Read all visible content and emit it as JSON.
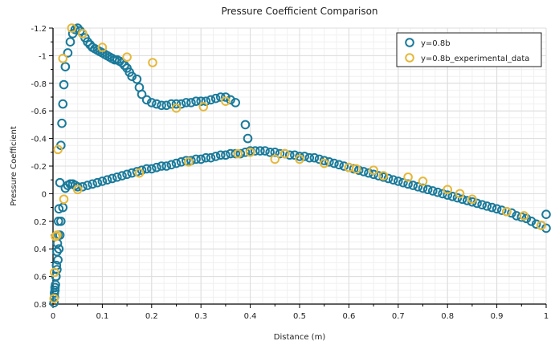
{
  "chart_data": {
    "type": "scatter",
    "title": "Pressure Coefficient Comparison",
    "xlabel": "Distance (m)",
    "ylabel": "Pressure Coefficient",
    "xlim": [
      0,
      1
    ],
    "ylim": [
      -1.2,
      0.8
    ],
    "y_inverted": true,
    "grid": true,
    "legend_position": "top-right",
    "x_ticks": [
      "0",
      "0.1",
      "0.2",
      "0.3",
      "0.4",
      "0.5",
      "0.6",
      "0.7",
      "0.8",
      "0.9",
      "1"
    ],
    "x_tick_values": [
      0,
      0.1,
      0.2,
      0.3,
      0.4,
      0.5,
      0.6,
      0.7,
      0.8,
      0.9,
      1
    ],
    "y_ticks": [
      "-1.2",
      "-1",
      "-0.8",
      "-0.6",
      "-0.4",
      "-0.2",
      "0",
      "0.2",
      "0.4",
      "0.6",
      "0.8"
    ],
    "y_tick_values": [
      -1.2,
      -1,
      -0.8,
      -0.6,
      -0.4,
      -0.2,
      0,
      0.2,
      0.4,
      0.6,
      0.8
    ],
    "series": [
      {
        "name": "y=0.8b",
        "color": "#1a7a9a",
        "x": [
          0.002,
          0.003,
          0.004,
          0.005,
          0.006,
          0.007,
          0.008,
          0.009,
          0.01,
          0.011,
          0.012,
          0.014,
          0.016,
          0.018,
          0.02,
          0.022,
          0.025,
          0.03,
          0.035,
          0.04,
          0.045,
          0.05,
          0.055,
          0.06,
          0.065,
          0.07,
          0.075,
          0.08,
          0.085,
          0.09,
          0.095,
          0.1,
          0.105,
          0.11,
          0.115,
          0.12,
          0.125,
          0.13,
          0.135,
          0.14,
          0.145,
          0.15,
          0.155,
          0.16,
          0.17,
          0.175,
          0.18,
          0.19,
          0.2,
          0.21,
          0.22,
          0.23,
          0.24,
          0.25,
          0.26,
          0.27,
          0.28,
          0.29,
          0.3,
          0.31,
          0.32,
          0.33,
          0.34,
          0.35,
          0.36,
          0.37,
          0.39,
          0.395,
          0.003,
          0.004,
          0.006,
          0.008,
          0.01,
          0.012,
          0.014,
          0.016,
          0.02,
          0.025,
          0.03,
          0.035,
          0.04,
          0.045,
          0.05,
          0.06,
          0.07,
          0.08,
          0.09,
          0.1,
          0.11,
          0.12,
          0.13,
          0.14,
          0.15,
          0.16,
          0.17,
          0.18,
          0.19,
          0.2,
          0.21,
          0.22,
          0.23,
          0.24,
          0.25,
          0.26,
          0.27,
          0.28,
          0.29,
          0.3,
          0.31,
          0.32,
          0.33,
          0.34,
          0.35,
          0.36,
          0.37,
          0.38,
          0.39,
          0.4,
          0.41,
          0.42,
          0.43,
          0.44,
          0.45,
          0.46,
          0.47,
          0.48,
          0.49,
          0.5,
          0.51,
          0.52,
          0.53,
          0.54,
          0.55,
          0.56,
          0.57,
          0.58,
          0.59,
          0.6,
          0.61,
          0.62,
          0.63,
          0.64,
          0.65,
          0.66,
          0.67,
          0.68,
          0.69,
          0.7,
          0.71,
          0.72,
          0.73,
          0.74,
          0.75,
          0.76,
          0.77,
          0.78,
          0.79,
          0.8,
          0.81,
          0.82,
          0.83,
          0.84,
          0.85,
          0.86,
          0.87,
          0.88,
          0.89,
          0.9,
          0.91,
          0.92,
          0.93,
          0.94,
          0.95,
          0.96,
          0.97,
          0.98,
          0.99,
          1.0,
          1.0
        ],
        "y": [
          0.79,
          0.75,
          0.7,
          0.66,
          0.6,
          0.52,
          0.42,
          0.36,
          0.3,
          0.2,
          0.11,
          -0.08,
          -0.35,
          -0.51,
          -0.65,
          -0.79,
          -0.92,
          -1.02,
          -1.1,
          -1.16,
          -1.19,
          -1.2,
          -1.18,
          -1.16,
          -1.13,
          -1.1,
          -1.08,
          -1.06,
          -1.05,
          -1.04,
          -1.03,
          -1.02,
          -1.01,
          -1.0,
          -0.99,
          -0.98,
          -0.97,
          -0.97,
          -0.96,
          -0.95,
          -0.93,
          -0.91,
          -0.88,
          -0.85,
          -0.83,
          -0.77,
          -0.72,
          -0.68,
          -0.66,
          -0.65,
          -0.64,
          -0.64,
          -0.65,
          -0.65,
          -0.65,
          -0.66,
          -0.66,
          -0.67,
          -0.67,
          -0.67,
          -0.68,
          -0.69,
          -0.7,
          -0.7,
          -0.68,
          -0.66,
          -0.5,
          -0.4,
          0.72,
          0.68,
          0.6,
          0.55,
          0.48,
          0.4,
          0.3,
          0.2,
          0.1,
          -0.04,
          -0.06,
          -0.07,
          -0.07,
          -0.06,
          -0.05,
          -0.05,
          -0.06,
          -0.07,
          -0.08,
          -0.09,
          -0.1,
          -0.11,
          -0.12,
          -0.13,
          -0.14,
          -0.15,
          -0.16,
          -0.17,
          -0.18,
          -0.18,
          -0.19,
          -0.2,
          -0.2,
          -0.21,
          -0.22,
          -0.23,
          -0.24,
          -0.24,
          -0.25,
          -0.25,
          -0.26,
          -0.26,
          -0.27,
          -0.28,
          -0.28,
          -0.29,
          -0.29,
          -0.29,
          -0.3,
          -0.31,
          -0.31,
          -0.31,
          -0.31,
          -0.3,
          -0.3,
          -0.29,
          -0.29,
          -0.28,
          -0.28,
          -0.27,
          -0.27,
          -0.26,
          -0.26,
          -0.25,
          -0.24,
          -0.23,
          -0.22,
          -0.21,
          -0.2,
          -0.19,
          -0.18,
          -0.17,
          -0.16,
          -0.15,
          -0.14,
          -0.13,
          -0.12,
          -0.11,
          -0.1,
          -0.09,
          -0.08,
          -0.07,
          -0.06,
          -0.05,
          -0.04,
          -0.03,
          -0.02,
          -0.01,
          0.0,
          0.01,
          0.02,
          0.03,
          0.04,
          0.05,
          0.06,
          0.07,
          0.08,
          0.09,
          0.1,
          0.11,
          0.12,
          0.13,
          0.14,
          0.16,
          0.17,
          0.18,
          0.2,
          0.22,
          0.23,
          0.25,
          0.15
        ]
      },
      {
        "name": "y=0.8b_experimental_data",
        "color": "#e6b83a",
        "x": [
          0.002,
          0.003,
          0.005,
          0.01,
          0.02,
          0.038,
          0.06,
          0.1,
          0.15,
          0.202,
          0.25,
          0.305,
          0.35,
          0.05,
          0.008,
          0.022,
          0.175,
          0.275,
          0.375,
          0.4,
          0.45,
          0.47,
          0.5,
          0.55,
          0.6,
          0.615,
          0.65,
          0.67,
          0.72,
          0.75,
          0.8,
          0.825,
          0.85,
          0.92,
          0.955,
          0.99
        ],
        "y": [
          0.76,
          0.57,
          0.31,
          -0.32,
          -0.98,
          -1.2,
          -1.16,
          -1.06,
          -0.99,
          -0.95,
          -0.62,
          -0.63,
          -0.67,
          -0.03,
          0.3,
          0.04,
          -0.15,
          -0.23,
          -0.29,
          -0.3,
          -0.25,
          -0.29,
          -0.25,
          -0.22,
          -0.19,
          -0.18,
          -0.17,
          -0.13,
          -0.12,
          -0.09,
          -0.03,
          0.0,
          0.04,
          0.13,
          0.16,
          0.23
        ]
      }
    ]
  }
}
